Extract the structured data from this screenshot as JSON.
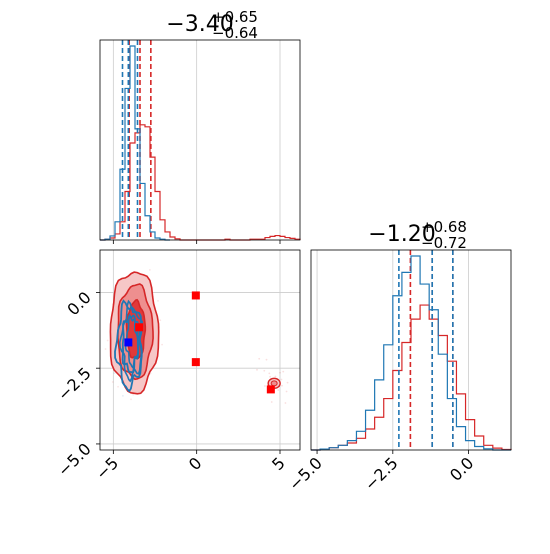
{
  "chart_data": {
    "type": "corner",
    "parameters": [
      {
        "title_main": "−3.40",
        "title_sup": "+0.65",
        "title_sub": "−0.64"
      },
      {
        "title_main": "−1.20",
        "title_sup": "+0.68",
        "title_sub": "−0.72"
      }
    ],
    "axes": {
      "x1": {
        "range": [
          -5.8,
          6.2
        ],
        "ticks": [
          -5,
          0,
          5
        ],
        "tick_labels": [
          "−5",
          "0",
          "5"
        ],
        "grid": true
      },
      "x2": {
        "range": [
          -5.2,
          1.4
        ],
        "ticks": [
          -5.0,
          -2.5,
          0.0
        ],
        "tick_labels": [
          "−5.0",
          "−2.5",
          "0.0"
        ],
        "grid": true
      },
      "y_joint": {
        "range": [
          -5.2,
          1.4
        ],
        "ticks": [
          0.0,
          -2.5,
          -5.0
        ],
        "tick_labels": [
          "0.0",
          "−2.5",
          "−5.0"
        ],
        "grid": true
      }
    },
    "series": [
      {
        "color": "#d62728",
        "quantile_lines_p1": [
          -4.05,
          -3.4,
          -2.75
        ],
        "quantile_lines_p2": [
          -1.92,
          -1.2,
          -0.52
        ],
        "hist_p1": {
          "bins": [
            -5.8,
            -5.5,
            -5.2,
            -4.9,
            -4.6,
            -4.3,
            -4.0,
            -3.7,
            -3.4,
            -3.1,
            -2.8,
            -2.5,
            -2.2,
            -1.9,
            -1.6,
            -1.3,
            -1.0,
            -0.7,
            -0.4,
            -0.1,
            0.2,
            0.5,
            0.8,
            1.1,
            1.4,
            1.7,
            2.0,
            2.3,
            2.6,
            2.9,
            3.2,
            3.5,
            3.8,
            4.1,
            4.4,
            4.7,
            5.0,
            5.3,
            5.6,
            5.9,
            6.2
          ],
          "counts": [
            0,
            0.004,
            0.01,
            0.03,
            0.09,
            0.24,
            0.48,
            0.53,
            0.57,
            0.56,
            0.41,
            0.24,
            0.1,
            0.04,
            0.015,
            0.006,
            0,
            0,
            0,
            0,
            0,
            0,
            0,
            0,
            0,
            0.004,
            0,
            0,
            0,
            0,
            0.004,
            0.004,
            0.004,
            0.012,
            0.018,
            0.022,
            0.018,
            0.012,
            0.008,
            0.004
          ]
        },
        "hist_p2": {
          "bins": [
            -5.2,
            -4.9,
            -4.6,
            -4.3,
            -4.0,
            -3.7,
            -3.4,
            -3.1,
            -2.8,
            -2.5,
            -2.2,
            -1.9,
            -1.6,
            -1.3,
            -1.0,
            -0.7,
            -0.4,
            -0.1,
            0.2,
            0.5,
            0.8,
            1.1,
            1.4
          ],
          "counts": [
            0,
            0.004,
            0.01,
            0.02,
            0.03,
            0.05,
            0.09,
            0.14,
            0.22,
            0.34,
            0.46,
            0.56,
            0.62,
            0.56,
            0.49,
            0.38,
            0.24,
            0.13,
            0.06,
            0.02,
            0.008,
            0.002
          ]
        },
        "contour_levels": [
          {
            "cx": -3.65,
            "cy": -1.25,
            "rx": 0.55,
            "ry": 0.95
          },
          {
            "cx": -3.7,
            "cy": -1.3,
            "rx": 1.05,
            "ry": 1.55
          },
          {
            "cx": -3.75,
            "cy": -1.3,
            "rx": 1.45,
            "ry": 2.0
          }
        ],
        "secondary_mode": {
          "x": 4.65,
          "y": -3.0
        },
        "markers": [
          {
            "x": -0.05,
            "y": -0.1
          },
          {
            "x": -0.05,
            "y": -2.3
          },
          {
            "x": -3.45,
            "y": -1.15
          },
          {
            "x": 4.45,
            "y": -3.2
          }
        ]
      },
      {
        "color": "#1f77b4",
        "quantile_lines_p1": [
          -4.45,
          -4.1,
          -3.55
        ],
        "quantile_lines_p2": [
          -2.3,
          -1.2,
          -0.52
        ],
        "hist_p1": {
          "bins": [
            -5.8,
            -5.5,
            -5.2,
            -4.9,
            -4.6,
            -4.3,
            -4.0,
            -3.7,
            -3.4,
            -3.1,
            -2.8,
            -2.5,
            -2.2,
            -1.9,
            -1.6
          ],
          "counts": [
            0,
            0.004,
            0.02,
            0.09,
            0.35,
            0.75,
            0.96,
            0.55,
            0.28,
            0.12,
            0.04,
            0.01,
            0.004,
            0
          ]
        },
        "hist_p2": {
          "bins": [
            -5.2,
            -4.9,
            -4.6,
            -4.3,
            -4.0,
            -3.7,
            -3.4,
            -3.1,
            -2.8,
            -2.5,
            -2.2,
            -1.9,
            -1.6,
            -1.3,
            -1.0,
            -0.7,
            -0.4,
            -0.1,
            0.2,
            0.5,
            0.8,
            1.1,
            1.4
          ],
          "counts": [
            0,
            0.004,
            0.01,
            0.02,
            0.04,
            0.08,
            0.17,
            0.3,
            0.45,
            0.66,
            0.76,
            0.83,
            0.71,
            0.6,
            0.41,
            0.22,
            0.1,
            0.04,
            0.015,
            0.005,
            0,
            0
          ]
        },
        "contour_levels": [
          {
            "cx": -4.0,
            "cy": -1.7,
            "rx": 0.45,
            "ry": 0.9
          },
          {
            "cx": -4.05,
            "cy": -1.75,
            "rx": 0.75,
            "ry": 1.35
          }
        ],
        "markers": [
          {
            "x": -4.1,
            "y": -1.65
          }
        ]
      }
    ]
  }
}
